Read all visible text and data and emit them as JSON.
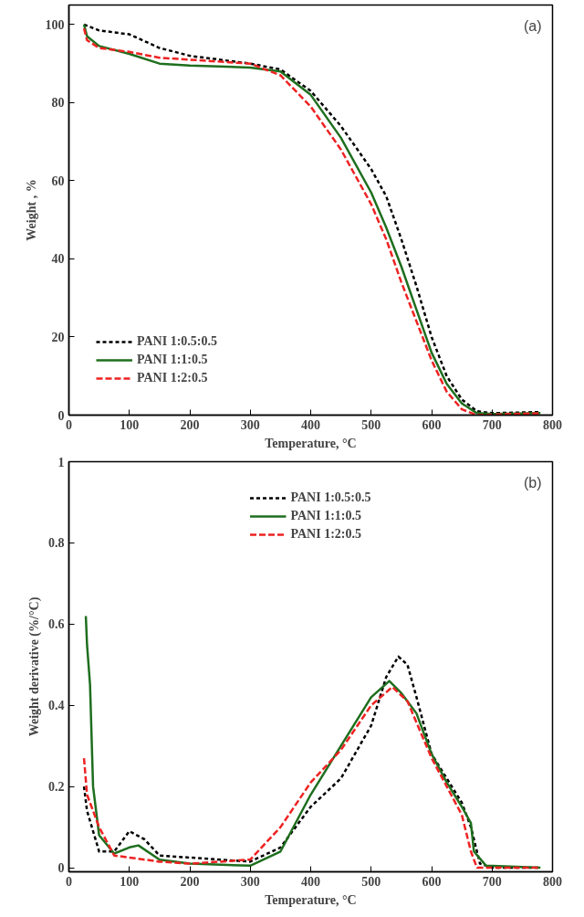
{
  "chart_data": [
    {
      "type": "line",
      "xlabel": "Temperature, °C",
      "ylabel": "Weight , %",
      "xlim": [
        0,
        800
      ],
      "ylim": [
        0,
        105
      ],
      "xticks": [
        0,
        100,
        200,
        300,
        400,
        500,
        600,
        700,
        800
      ],
      "yticks": [
        0,
        20,
        40,
        60,
        80,
        100
      ],
      "grid": false,
      "legend": "bottom left",
      "annotations": [
        "(a)"
      ],
      "series": [
        {
          "name": "PANI 1:0.5:0.5",
          "color": "#000000",
          "line_style": "dotted",
          "x": [
            25,
            50,
            100,
            150,
            200,
            300,
            350,
            400,
            450,
            500,
            525,
            550,
            575,
            600,
            625,
            650,
            675,
            700,
            780
          ],
          "values": [
            100,
            98.5,
            97.5,
            94,
            92,
            90,
            88.5,
            83,
            74,
            63,
            56,
            45,
            33,
            20,
            10,
            4,
            1,
            0.5,
            0.8
          ]
        },
        {
          "name": "PANI 1:1:0.5",
          "color": "#1e6e1e",
          "line_style": "solid",
          "x": [
            25,
            30,
            50,
            100,
            150,
            200,
            300,
            350,
            400,
            450,
            500,
            525,
            550,
            575,
            600,
            625,
            650,
            675,
            700,
            780
          ],
          "values": [
            100,
            97,
            94.5,
            92.5,
            90,
            89.5,
            89,
            88,
            82,
            71,
            57,
            48,
            38,
            27,
            16,
            8,
            3,
            0.5,
            0.3,
            0.5
          ]
        },
        {
          "name": "PANI 1:2:0.5",
          "color": "#ee2222",
          "line_style": "dashed",
          "x": [
            25,
            30,
            50,
            100,
            150,
            200,
            300,
            350,
            400,
            450,
            500,
            525,
            550,
            575,
            600,
            625,
            650,
            675,
            780
          ],
          "values": [
            99,
            96,
            94,
            93,
            91.5,
            91,
            90,
            87,
            79,
            68,
            54,
            45,
            34,
            24,
            14,
            6,
            1.5,
            0,
            0.5
          ]
        }
      ]
    },
    {
      "type": "line",
      "xlabel": "Temperature, °C",
      "ylabel": "Weight derivative (%/°C)",
      "xlim": [
        0,
        800
      ],
      "ylim": [
        -0.01,
        1
      ],
      "xticks": [
        0,
        100,
        200,
        300,
        400,
        500,
        600,
        700,
        800
      ],
      "yticks": [
        0,
        0.2,
        0.4,
        0.6,
        0.8,
        1
      ],
      "grid": false,
      "legend": "top",
      "annotations": [
        "(b)"
      ],
      "series": [
        {
          "name": "PANI 1:0.5:0.5",
          "color": "#000000",
          "line_style": "dotted",
          "x": [
            25,
            30,
            50,
            75,
            100,
            125,
            150,
            200,
            300,
            350,
            400,
            450,
            500,
            525,
            545,
            560,
            575,
            600,
            625,
            650,
            665,
            680,
            700,
            780
          ],
          "values": [
            0.2,
            0.14,
            0.04,
            0.04,
            0.09,
            0.07,
            0.03,
            0.025,
            0.015,
            0.05,
            0.15,
            0.22,
            0.35,
            0.47,
            0.52,
            0.5,
            0.42,
            0.28,
            0.22,
            0.16,
            0.1,
            0.01,
            0,
            0
          ]
        },
        {
          "name": "PANI 1:1:0.5",
          "color": "#1e6e1e",
          "line_style": "solid",
          "x": [
            28,
            30,
            35,
            40,
            50,
            75,
            100,
            115,
            150,
            200,
            300,
            350,
            400,
            450,
            500,
            530,
            550,
            575,
            600,
            625,
            650,
            665,
            670,
            690,
            780
          ],
          "values": [
            0.62,
            0.55,
            0.45,
            0.2,
            0.08,
            0.035,
            0.05,
            0.055,
            0.02,
            0.01,
            0.005,
            0.04,
            0.18,
            0.3,
            0.42,
            0.46,
            0.43,
            0.38,
            0.28,
            0.21,
            0.15,
            0.11,
            0.04,
            0.005,
            0
          ]
        },
        {
          "name": "PANI 1:2:0.5",
          "color": "#ee2222",
          "line_style": "dashed",
          "x": [
            25,
            30,
            50,
            75,
            100,
            150,
            200,
            300,
            350,
            400,
            450,
            500,
            535,
            560,
            600,
            625,
            650,
            665,
            675,
            780
          ],
          "values": [
            0.27,
            0.18,
            0.1,
            0.03,
            0.025,
            0.015,
            0.01,
            0.02,
            0.1,
            0.21,
            0.29,
            0.4,
            0.445,
            0.41,
            0.27,
            0.2,
            0.13,
            0.04,
            0,
            0
          ]
        }
      ]
    }
  ]
}
